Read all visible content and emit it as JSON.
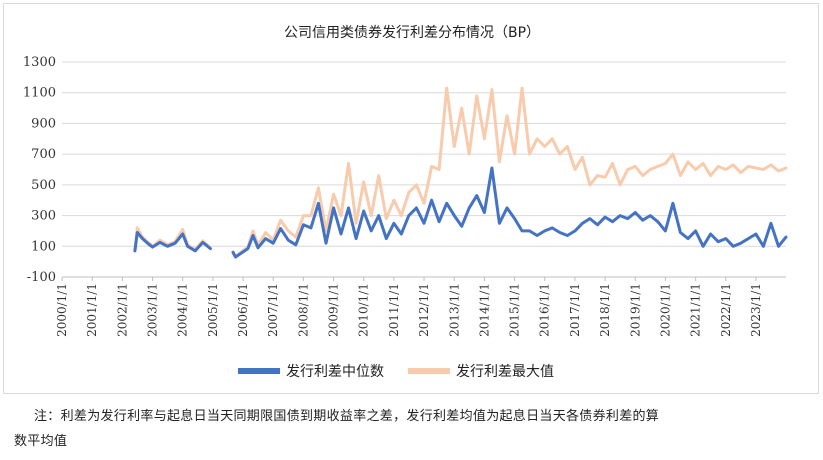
{
  "chart_data": {
    "type": "line",
    "title": "公司信用类债券发行利差分布情况（BP）",
    "xlabel": "",
    "ylabel": "",
    "ylim": [
      -100,
      1300
    ],
    "yticks": [
      -100,
      100,
      300,
      500,
      700,
      900,
      1100,
      1300
    ],
    "xticks": [
      "2000/1/1",
      "2001/1/1",
      "2002/1/1",
      "2003/1/1",
      "2004/1/1",
      "2005/1/1",
      "2006/1/1",
      "2007/1/1",
      "2008/1/1",
      "2009/1/1",
      "2010/1/1",
      "2011/1/1",
      "2012/1/1",
      "2013/1/1",
      "2014/1/1",
      "2015/1/1",
      "2016/1/1",
      "2017/1/1",
      "2018/1/1",
      "2019/1/1",
      "2020/1/1",
      "2021/1/1",
      "2022/1/1",
      "2023/1/1"
    ],
    "xrange": [
      "2000-01-01",
      "2023-12-31"
    ],
    "legend_position": "bottom",
    "series": [
      {
        "name": "发行利差中位数",
        "color": "#4472c4",
        "points": [
          [
            "2002-06-01",
            70
          ],
          [
            "2002-07-01",
            190
          ],
          [
            "2002-09-01",
            150
          ],
          [
            "2002-11-01",
            120
          ],
          [
            "2003-01-01",
            95
          ],
          [
            "2003-04-01",
            125
          ],
          [
            "2003-07-01",
            100
          ],
          [
            "2003-10-01",
            120
          ],
          [
            "2004-01-01",
            180
          ],
          [
            "2004-03-01",
            100
          ],
          [
            "2004-06-01",
            70
          ],
          [
            "2004-09-01",
            125
          ],
          [
            "2004-12-01",
            85
          ],
          [
            "2005-09-01",
            60
          ],
          [
            "2005-10-01",
            30
          ],
          [
            "2006-03-01",
            85
          ],
          [
            "2006-05-01",
            170
          ],
          [
            "2006-07-01",
            90
          ],
          [
            "2006-10-01",
            150
          ],
          [
            "2007-01-01",
            120
          ],
          [
            "2007-04-01",
            215
          ],
          [
            "2007-07-01",
            140
          ],
          [
            "2007-10-01",
            110
          ],
          [
            "2008-01-01",
            240
          ],
          [
            "2008-04-01",
            220
          ],
          [
            "2008-07-01",
            380
          ],
          [
            "2008-10-01",
            120
          ],
          [
            "2009-01-01",
            350
          ],
          [
            "2009-04-01",
            180
          ],
          [
            "2009-07-01",
            350
          ],
          [
            "2009-10-01",
            150
          ],
          [
            "2010-01-01",
            330
          ],
          [
            "2010-04-01",
            200
          ],
          [
            "2010-07-01",
            300
          ],
          [
            "2010-10-01",
            150
          ],
          [
            "2011-01-01",
            250
          ],
          [
            "2011-04-01",
            180
          ],
          [
            "2011-07-01",
            300
          ],
          [
            "2011-10-01",
            350
          ],
          [
            "2012-01-01",
            250
          ],
          [
            "2012-04-01",
            400
          ],
          [
            "2012-07-01",
            260
          ],
          [
            "2012-10-01",
            380
          ],
          [
            "2013-01-01",
            300
          ],
          [
            "2013-04-01",
            230
          ],
          [
            "2013-07-01",
            350
          ],
          [
            "2013-10-01",
            430
          ],
          [
            "2014-01-01",
            320
          ],
          [
            "2014-04-01",
            610
          ],
          [
            "2014-07-01",
            250
          ],
          [
            "2014-10-01",
            350
          ],
          [
            "2015-01-01",
            280
          ],
          [
            "2015-04-01",
            200
          ],
          [
            "2015-07-01",
            200
          ],
          [
            "2015-10-01",
            170
          ],
          [
            "2016-01-01",
            200
          ],
          [
            "2016-04-01",
            220
          ],
          [
            "2016-07-01",
            190
          ],
          [
            "2016-10-01",
            170
          ],
          [
            "2017-01-01",
            200
          ],
          [
            "2017-04-01",
            250
          ],
          [
            "2017-07-01",
            280
          ],
          [
            "2017-10-01",
            240
          ],
          [
            "2018-01-01",
            290
          ],
          [
            "2018-04-01",
            260
          ],
          [
            "2018-07-01",
            300
          ],
          [
            "2018-10-01",
            280
          ],
          [
            "2019-01-01",
            320
          ],
          [
            "2019-04-01",
            270
          ],
          [
            "2019-07-01",
            300
          ],
          [
            "2019-10-01",
            260
          ],
          [
            "2020-01-01",
            200
          ],
          [
            "2020-04-01",
            380
          ],
          [
            "2020-07-01",
            190
          ],
          [
            "2020-10-01",
            150
          ],
          [
            "2021-01-01",
            200
          ],
          [
            "2021-04-01",
            100
          ],
          [
            "2021-07-01",
            180
          ],
          [
            "2021-10-01",
            130
          ],
          [
            "2022-01-01",
            150
          ],
          [
            "2022-04-01",
            100
          ],
          [
            "2022-07-01",
            120
          ],
          [
            "2022-10-01",
            150
          ],
          [
            "2023-01-01",
            180
          ],
          [
            "2023-04-01",
            100
          ],
          [
            "2023-07-01",
            250
          ],
          [
            "2023-10-01",
            100
          ],
          [
            "2023-12-31",
            160
          ]
        ]
      },
      {
        "name": "发行利差最大值",
        "color": "#f8cbad",
        "points": [
          [
            "2002-06-01",
            75
          ],
          [
            "2002-07-01",
            220
          ],
          [
            "2002-09-01",
            160
          ],
          [
            "2002-11-01",
            130
          ],
          [
            "2003-01-01",
            100
          ],
          [
            "2003-04-01",
            140
          ],
          [
            "2003-07-01",
            110
          ],
          [
            "2003-10-01",
            130
          ],
          [
            "2004-01-01",
            210
          ],
          [
            "2004-03-01",
            110
          ],
          [
            "2004-06-01",
            80
          ],
          [
            "2004-09-01",
            135
          ],
          [
            "2004-12-01",
            90
          ],
          [
            "2005-09-01",
            65
          ],
          [
            "2005-10-01",
            35
          ],
          [
            "2006-03-01",
            95
          ],
          [
            "2006-05-01",
            200
          ],
          [
            "2006-07-01",
            110
          ],
          [
            "2006-10-01",
            190
          ],
          [
            "2007-01-01",
            140
          ],
          [
            "2007-04-01",
            270
          ],
          [
            "2007-07-01",
            200
          ],
          [
            "2007-10-01",
            160
          ],
          [
            "2008-01-01",
            300
          ],
          [
            "2008-04-01",
            300
          ],
          [
            "2008-07-01",
            480
          ],
          [
            "2008-10-01",
            200
          ],
          [
            "2009-01-01",
            440
          ],
          [
            "2009-04-01",
            300
          ],
          [
            "2009-07-01",
            640
          ],
          [
            "2009-10-01",
            250
          ],
          [
            "2010-01-01",
            520
          ],
          [
            "2010-04-01",
            300
          ],
          [
            "2010-07-01",
            560
          ],
          [
            "2010-10-01",
            280
          ],
          [
            "2011-01-01",
            400
          ],
          [
            "2011-04-01",
            300
          ],
          [
            "2011-07-01",
            450
          ],
          [
            "2011-10-01",
            500
          ],
          [
            "2012-01-01",
            380
          ],
          [
            "2012-04-01",
            620
          ],
          [
            "2012-07-01",
            600
          ],
          [
            "2012-10-01",
            1130
          ],
          [
            "2013-01-01",
            750
          ],
          [
            "2013-04-01",
            1000
          ],
          [
            "2013-07-01",
            700
          ],
          [
            "2013-10-01",
            1080
          ],
          [
            "2014-01-01",
            800
          ],
          [
            "2014-04-01",
            1120
          ],
          [
            "2014-07-01",
            650
          ],
          [
            "2014-10-01",
            950
          ],
          [
            "2015-01-01",
            700
          ],
          [
            "2015-04-01",
            1130
          ],
          [
            "2015-07-01",
            700
          ],
          [
            "2015-10-01",
            800
          ],
          [
            "2016-01-01",
            750
          ],
          [
            "2016-04-01",
            800
          ],
          [
            "2016-07-01",
            700
          ],
          [
            "2016-10-01",
            750
          ],
          [
            "2017-01-01",
            600
          ],
          [
            "2017-04-01",
            680
          ],
          [
            "2017-07-01",
            500
          ],
          [
            "2017-10-01",
            560
          ],
          [
            "2018-01-01",
            550
          ],
          [
            "2018-04-01",
            640
          ],
          [
            "2018-07-01",
            500
          ],
          [
            "2018-10-01",
            600
          ],
          [
            "2019-01-01",
            620
          ],
          [
            "2019-04-01",
            560
          ],
          [
            "2019-07-01",
            600
          ],
          [
            "2019-10-01",
            620
          ],
          [
            "2020-01-01",
            640
          ],
          [
            "2020-04-01",
            700
          ],
          [
            "2020-07-01",
            560
          ],
          [
            "2020-10-01",
            650
          ],
          [
            "2021-01-01",
            600
          ],
          [
            "2021-04-01",
            640
          ],
          [
            "2021-07-01",
            560
          ],
          [
            "2021-10-01",
            620
          ],
          [
            "2022-01-01",
            600
          ],
          [
            "2022-04-01",
            630
          ],
          [
            "2022-07-01",
            580
          ],
          [
            "2022-10-01",
            620
          ],
          [
            "2023-01-01",
            610
          ],
          [
            "2023-04-01",
            600
          ],
          [
            "2023-07-01",
            630
          ],
          [
            "2023-10-01",
            590
          ],
          [
            "2023-12-31",
            610
          ]
        ]
      }
    ]
  },
  "footnote": {
    "line1": "注：利差为发行利率与起息日当天同期限国债到期收益率之差，发行利差均值为起息日当天各债券利差的算",
    "line2": "数平均值"
  }
}
